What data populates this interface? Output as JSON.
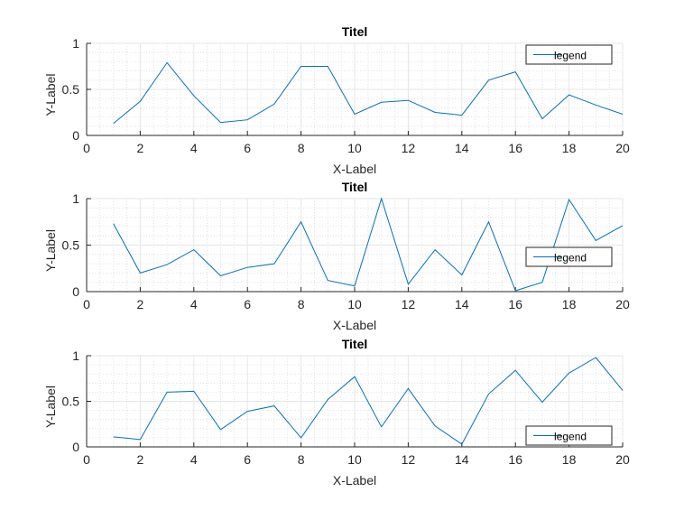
{
  "chart_data": [
    {
      "type": "line",
      "title": "Titel",
      "xlabel": "X-Label",
      "ylabel": "Y-Label",
      "xlim": [
        0,
        20
      ],
      "ylim": [
        0,
        1
      ],
      "xticks": [
        0,
        2,
        4,
        6,
        8,
        10,
        12,
        14,
        16,
        18,
        20
      ],
      "yticks": [
        0,
        0.5,
        1
      ],
      "grid": true,
      "minor_grid": true,
      "legend_position": "top-right",
      "color": "#0072bd",
      "series": [
        {
          "name": "legend",
          "x": [
            1,
            2,
            3,
            4,
            5,
            6,
            7,
            8,
            9,
            10,
            11,
            12,
            13,
            14,
            15,
            16,
            17,
            18,
            19,
            20
          ],
          "y": [
            0.13,
            0.37,
            0.79,
            0.43,
            0.14,
            0.17,
            0.34,
            0.75,
            0.75,
            0.23,
            0.36,
            0.38,
            0.25,
            0.22,
            0.6,
            0.69,
            0.18,
            0.44,
            0.33,
            0.23
          ]
        }
      ]
    },
    {
      "type": "line",
      "title": "Titel",
      "xlabel": "X-Label",
      "ylabel": "Y-Label",
      "xlim": [
        0,
        20
      ],
      "ylim": [
        0,
        1
      ],
      "xticks": [
        0,
        2,
        4,
        6,
        8,
        10,
        12,
        14,
        16,
        18,
        20
      ],
      "yticks": [
        0,
        0.5,
        1
      ],
      "grid": true,
      "minor_grid": true,
      "legend_position": "middle-right",
      "color": "#0072bd",
      "series": [
        {
          "name": "legend",
          "x": [
            1,
            2,
            3,
            4,
            5,
            6,
            7,
            8,
            9,
            10,
            11,
            12,
            13,
            14,
            15,
            16,
            17,
            18,
            19,
            20
          ],
          "y": [
            0.73,
            0.2,
            0.29,
            0.45,
            0.17,
            0.26,
            0.3,
            0.75,
            0.12,
            0.06,
            1.0,
            0.08,
            0.45,
            0.18,
            0.75,
            0.01,
            0.1,
            0.99,
            0.55,
            0.71
          ]
        }
      ]
    },
    {
      "type": "line",
      "title": "Titel",
      "xlabel": "X-Label",
      "ylabel": "Y-Label",
      "xlim": [
        0,
        20
      ],
      "ylim": [
        0,
        1
      ],
      "xticks": [
        0,
        2,
        4,
        6,
        8,
        10,
        12,
        14,
        16,
        18,
        20
      ],
      "yticks": [
        0,
        0.5,
        1
      ],
      "grid": true,
      "minor_grid": true,
      "legend_position": "bottom-right",
      "color": "#0072bd",
      "series": [
        {
          "name": "legend",
          "x": [
            1,
            2,
            3,
            4,
            5,
            6,
            7,
            8,
            9,
            10,
            11,
            12,
            13,
            14,
            15,
            16,
            17,
            18,
            19,
            20
          ],
          "y": [
            0.11,
            0.08,
            0.6,
            0.61,
            0.19,
            0.39,
            0.45,
            0.1,
            0.52,
            0.77,
            0.22,
            0.64,
            0.23,
            0.03,
            0.58,
            0.84,
            0.49,
            0.81,
            0.98,
            0.62
          ]
        }
      ]
    }
  ]
}
